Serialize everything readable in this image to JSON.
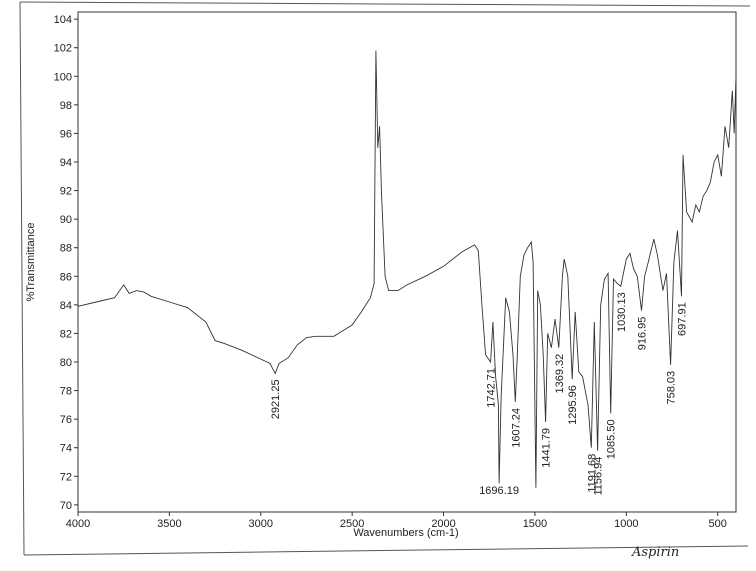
{
  "chart_data": {
    "type": "line",
    "x_label": "Wavenumbers (cm-1)",
    "y_label": "%Transmittance",
    "note": "Aspirin",
    "xlim": [
      4000,
      400
    ],
    "ylim": [
      69.5,
      104.5
    ],
    "x_reversed": true,
    "xticks": [
      4000,
      3500,
      3000,
      2500,
      2000,
      1500,
      1000,
      500
    ],
    "yticks": [
      70,
      72,
      74,
      76,
      78,
      80,
      82,
      84,
      86,
      88,
      90,
      92,
      94,
      96,
      98,
      100,
      102,
      104
    ],
    "color": "#333333",
    "x": [
      4000,
      3900,
      3800,
      3750,
      3720,
      3680,
      3640,
      3600,
      3500,
      3400,
      3300,
      3250,
      3200,
      3100,
      3000,
      2950,
      2921.25,
      2900,
      2850,
      2800,
      2750,
      2700,
      2600,
      2550,
      2500,
      2450,
      2400,
      2380,
      2370,
      2360,
      2350,
      2340,
      2320,
      2300,
      2250,
      2200,
      2100,
      2000,
      1900,
      1830,
      1810,
      1790,
      1770,
      1742.71,
      1730,
      1715,
      1700,
      1696.19,
      1685,
      1660,
      1640,
      1620,
      1607.24,
      1595,
      1580,
      1560,
      1540,
      1520,
      1510,
      1495,
      1485,
      1470,
      1455,
      1441.79,
      1430,
      1410,
      1390,
      1369.32,
      1350,
      1340,
      1320,
      1295.96,
      1280,
      1260,
      1240,
      1210,
      1191.68,
      1175,
      1156.94,
      1140,
      1120,
      1100,
      1085.5,
      1070,
      1050,
      1030.13,
      1000,
      980,
      960,
      940,
      916.95,
      900,
      880,
      850,
      830,
      800,
      780,
      758.03,
      740,
      720,
      697.91,
      690,
      670,
      640,
      620,
      600,
      580,
      560,
      540,
      520,
      500,
      480,
      460,
      440,
      420,
      410,
      400
    ],
    "values": [
      83.9,
      84.2,
      84.5,
      85.4,
      84.8,
      85.0,
      84.9,
      84.6,
      84.2,
      83.8,
      82.8,
      81.5,
      81.3,
      80.8,
      80.2,
      79.9,
      79.2,
      79.9,
      80.3,
      81.2,
      81.7,
      81.8,
      81.8,
      82.2,
      82.6,
      83.5,
      84.5,
      85.5,
      101.8,
      95,
      96.5,
      92,
      86,
      85,
      85.0,
      85.4,
      86.0,
      86.7,
      87.7,
      88.2,
      87.8,
      84,
      80.5,
      80.0,
      82.8,
      79,
      77.0,
      71.5,
      77.5,
      84.5,
      83.5,
      80.5,
      77.2,
      81,
      86,
      87.5,
      88.0,
      88.4,
      87,
      71.2,
      85.0,
      84,
      80.5,
      75.8,
      82,
      81,
      83,
      81.0,
      86.0,
      87.2,
      86.0,
      78.8,
      83.5,
      79.3,
      79.0,
      77,
      74.0,
      82.8,
      73.8,
      84.0,
      85.8,
      86.2,
      76.4,
      85.8,
      85.5,
      85.3,
      87.2,
      87.6,
      86.5,
      86.0,
      83.6,
      86.0,
      87.0,
      88.6,
      87.5,
      85.0,
      86.2,
      79.8,
      87.0,
      89.2,
      84.6,
      94.5,
      90.5,
      89.8,
      91.0,
      90.5,
      91.6,
      92.0,
      92.6,
      94.0,
      94.5,
      93.0,
      96.5,
      95,
      99,
      96,
      100
    ],
    "annotations": [
      {
        "text": "2921.25",
        "x": 2921.25,
        "y": 79.2
      },
      {
        "text": "1742.71",
        "x": 1742.71,
        "y": 80.0
      },
      {
        "text": "1696.19",
        "x": 1696.19,
        "y": 71.5,
        "orientation": "horizontal"
      },
      {
        "text": "1607.24",
        "x": 1607.24,
        "y": 77.2
      },
      {
        "text": "1441.79",
        "x": 1441.79,
        "y": 75.8
      },
      {
        "text": "1369.32",
        "x": 1369.32,
        "y": 81.0
      },
      {
        "text": "1295.96",
        "x": 1295.96,
        "y": 78.8
      },
      {
        "text": "1191.68",
        "x": 1191.68,
        "y": 74.0
      },
      {
        "text": "1156.94",
        "x": 1156.94,
        "y": 73.8
      },
      {
        "text": "1085.50",
        "x": 1085.5,
        "y": 76.4
      },
      {
        "text": "1030.13",
        "x": 1030.13,
        "y": 85.3
      },
      {
        "text": "916.95",
        "x": 916.95,
        "y": 83.6
      },
      {
        "text": "758.03",
        "x": 758.03,
        "y": 79.8
      },
      {
        "text": "697.91",
        "x": 697.91,
        "y": 84.6
      }
    ]
  }
}
